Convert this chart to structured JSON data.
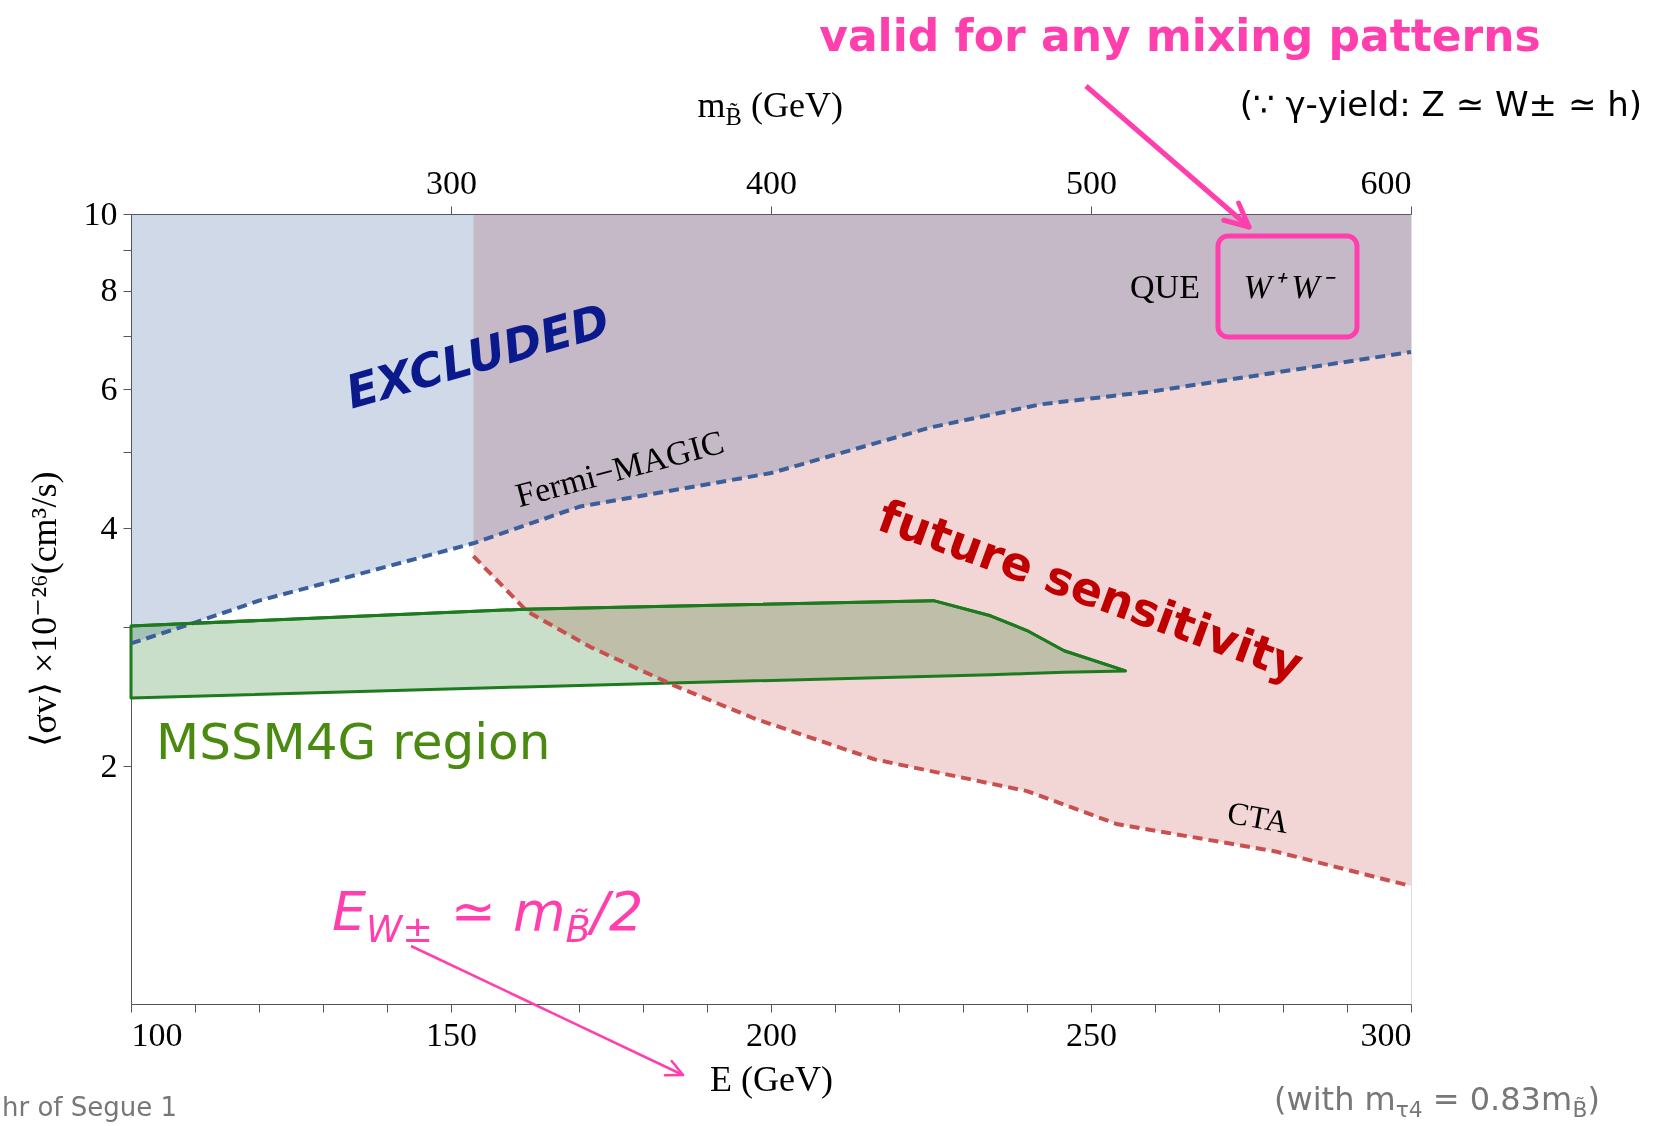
{
  "chart_data": {
    "type": "line",
    "xlabel": "E (GeV)",
    "x2label": "m$_{B̃}$ (GeV)",
    "ylabel": "⟨σv⟩ ×10⁻²⁶(cm³/s)",
    "xlim": [
      100,
      300
    ],
    "xticks": [
      100,
      {
        "value": 110,
        "label": null
      },
      {
        "value": 120,
        "label": null
      },
      {
        "value": 130,
        "label": null
      },
      {
        "value": 140,
        "label": null
      },
      150,
      {
        "value": 160,
        "label": null
      },
      {
        "value": 170,
        "label": null
      },
      {
        "value": 180,
        "label": null
      },
      {
        "value": 190,
        "label": null
      },
      200,
      {
        "value": 210,
        "label": null
      },
      {
        "value": 220,
        "label": null
      },
      {
        "value": 230,
        "label": null
      },
      {
        "value": 240,
        "label": null
      },
      250,
      {
        "value": 260,
        "label": null
      },
      {
        "value": 270,
        "label": null
      },
      {
        "value": 280,
        "label": null
      },
      {
        "value": 290,
        "label": null
      },
      300
    ],
    "x2lim": [
      200,
      600
    ],
    "x2ticks": [
      300,
      400,
      500,
      600
    ],
    "ylim": [
      1,
      10
    ],
    "yticks": [
      2,
      {
        "value": 3,
        "label": null
      },
      4,
      {
        "value": 5,
        "label": null
      },
      6,
      {
        "value": 7,
        "label": null
      },
      8,
      {
        "value": 9,
        "label": null
      },
      10
    ],
    "log": "y",
    "grid": false,
    "series": [
      {
        "color": "#c8504f",
        "line_style": "dashed",
        "x": [
          153.5,
          161.9,
          171.8,
          184.9,
          197.3,
          216.2,
          240,
          254,
          278.8,
          300
        ],
        "values": [
          3.69,
          3.14,
          2.83,
          2.53,
          2.3,
          2.04,
          1.86,
          1.69,
          1.56,
          1.41
        ],
        "lower": [
          3.69,
          3.14,
          2.83,
          2.53,
          2.3,
          2.04,
          1.86,
          1.69,
          1.56,
          1.41
        ],
        "upper": [
          10,
          10,
          10,
          10,
          10,
          10,
          10,
          10,
          10,
          10
        ]
      },
      {
        "color": "#3a5f9a",
        "line_style": "dashed",
        "x": [
          100,
          110,
          120,
          135,
          153.5,
          170,
          200,
          225,
          242,
          260,
          300
        ],
        "values": [
          2.86,
          3.04,
          3.24,
          3.49,
          3.83,
          4.26,
          4.7,
          5.37,
          5.74,
          5.97,
          6.69
        ],
        "lower": [
          2.86,
          3.04,
          3.24,
          3.49,
          3.83,
          4.26,
          4.7,
          5.37,
          5.74,
          5.97,
          6.69
        ],
        "upper": [
          10,
          10,
          10,
          10,
          10,
          10,
          10,
          10,
          10,
          10,
          10
        ]
      },
      {
        "color": "#1e7a1e",
        "line_style": "solid",
        "x": [
          100,
          161.4,
          225.4,
          234.3,
          240,
          245.8,
          255.4
        ],
        "values": [
          3.01,
          3.16,
          3.24,
          3.1,
          2.97,
          2.8,
          2.64
        ],
        "lower": [
          2.44,
          2.52,
          2.6,
          2.61,
          2.62,
          2.63,
          2.64
        ],
        "upper": [
          3.01,
          3.16,
          3.24,
          3.1,
          2.97,
          2.8,
          2.64
        ]
      }
    ],
    "annotations": [
      "valid for any mixing patterns",
      "(∵ γ-yield: Z ≃ W± ≃ h)",
      "EXCLUDED",
      "Fermi−MAGIC",
      "future sensitivity",
      "MSSM4G region",
      "CTA",
      "QUE",
      "W⁺ W⁻",
      "E$_{W±}$ ≃ m$_{B̃}$/2",
      "hr of Segue 1",
      "(with m$_{τ4}$ = 0.83m$_{B̃}$)"
    ]
  }
}
